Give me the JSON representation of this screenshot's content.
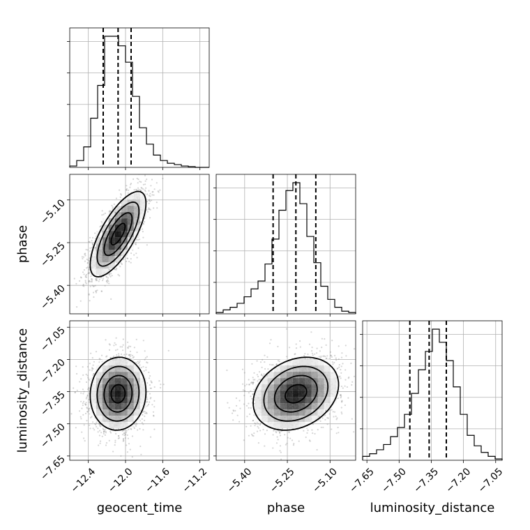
{
  "chart_data": {
    "type": "corner",
    "parameters": [
      {
        "name": "geocent_time",
        "label": "geocent_time",
        "range": [
          -12.6,
          -11.1
        ],
        "ticks": [
          -12.4,
          -12.0,
          -11.6,
          -11.2
        ],
        "tick_labels": [
          "−12.4",
          "−12.0",
          "−11.6",
          "−11.2"
        ],
        "quantiles": [
          -12.24,
          -12.08,
          -11.94
        ],
        "mean": -12.08,
        "sigma": 0.15
      },
      {
        "name": "phase",
        "label": "phase",
        "range": [
          -5.5,
          -5.01
        ],
        "ticks": [
          -5.4,
          -5.25,
          -5.1
        ],
        "tick_labels": [
          "−5.40",
          "−5.25",
          "−5.10"
        ],
        "quantiles": [
          -5.3,
          -5.22,
          -5.15
        ],
        "mean": -5.22,
        "sigma": 0.075
      },
      {
        "name": "luminosity_distance",
        "label": "luminosity_distance",
        "range": [
          -7.67,
          -7.02
        ],
        "ticks": [
          -7.65,
          -7.5,
          -7.35,
          -7.2,
          -7.05
        ],
        "tick_labels": [
          "−7.65",
          "−7.50",
          "−7.35",
          "−7.20",
          "−7.05"
        ],
        "quantiles": [
          -7.45,
          -7.36,
          -7.28
        ],
        "mean": -7.36,
        "sigma": 0.085
      }
    ],
    "histograms": [
      {
        "param": 0,
        "values": [
          1,
          5,
          15,
          36,
          60,
          96,
          96,
          89,
          77,
          52,
          29,
          17,
          9,
          5,
          3,
          2,
          1,
          0.5,
          0,
          0
        ]
      },
      {
        "param": 1,
        "values": [
          1,
          3,
          5,
          8,
          13,
          19,
          25,
          38,
          57,
          79,
          94,
          100,
          84,
          59,
          39,
          21,
          11,
          5,
          2,
          1
        ]
      },
      {
        "param": 2,
        "values": [
          3,
          5,
          8,
          12,
          18,
          25,
          35,
          51,
          69,
          83,
          100,
          90,
          76,
          56,
          35,
          19,
          11,
          6,
          3,
          1
        ]
      }
    ],
    "correlations": [
      {
        "x": 0,
        "y": 1,
        "rho": 0.72
      },
      {
        "x": 0,
        "y": 2,
        "rho": 0.05
      },
      {
        "x": 1,
        "y": 2,
        "rho": 0.25
      }
    ],
    "grid": true,
    "legend": "none"
  }
}
